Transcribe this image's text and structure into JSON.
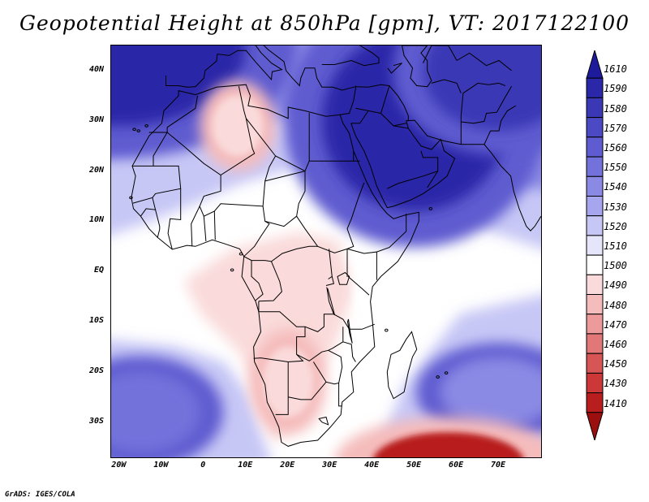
{
  "title": "Geopotential Height at 850hPa [gpm], VT: 2017122100",
  "credit": "GrADS: IGES/COLA",
  "map": {
    "lon_range": [
      -22,
      80
    ],
    "lat_range": [
      -37,
      45
    ],
    "lat_labels": [
      {
        "lat": 40,
        "label": "40N"
      },
      {
        "lat": 30,
        "label": "30N"
      },
      {
        "lat": 20,
        "label": "20N"
      },
      {
        "lat": 10,
        "label": "10N"
      },
      {
        "lat": 0,
        "label": "EQ"
      },
      {
        "lat": -10,
        "label": "10S"
      },
      {
        "lat": -20,
        "label": "20S"
      },
      {
        "lat": -30,
        "label": "30S"
      }
    ],
    "lon_labels": [
      {
        "lon": -20,
        "label": "20W"
      },
      {
        "lon": -10,
        "label": "10W"
      },
      {
        "lon": 0,
        "label": "0"
      },
      {
        "lon": 10,
        "label": "10E"
      },
      {
        "lon": 20,
        "label": "20E"
      },
      {
        "lon": 30,
        "label": "30E"
      },
      {
        "lon": 40,
        "label": "40E"
      },
      {
        "lon": 50,
        "label": "50E"
      },
      {
        "lon": 60,
        "label": "60E"
      },
      {
        "lon": 70,
        "label": "70E"
      }
    ]
  },
  "colorbar": {
    "labels": [
      "1610",
      "1590",
      "1580",
      "1570",
      "1560",
      "1550",
      "1540",
      "1530",
      "1520",
      "1510",
      "1500",
      "1490",
      "1480",
      "1470",
      "1460",
      "1450",
      "1430",
      "1410"
    ],
    "colors": [
      "#1e1a9c",
      "#2a27a8",
      "#3b38b6",
      "#4b49c3",
      "#5e5cd0",
      "#7372db",
      "#8a89e4",
      "#a6a6ee",
      "#c7c7f6",
      "#e6e6fb",
      "#ffffff",
      "#fadada",
      "#f5bcbc",
      "#ec9a9a",
      "#e27777",
      "#d85555",
      "#cc3737",
      "#b81e1e",
      "#9c0f0f"
    ]
  },
  "fields": {
    "highs": [
      {
        "name": "northwest-high",
        "lon": -20,
        "lat": 45,
        "rlon": 30,
        "rlat": 16,
        "level": 1590
      },
      {
        "name": "arabia-high",
        "lon": 50,
        "lat": 30,
        "rlon": 22,
        "rlat": 18,
        "level": 1590
      },
      {
        "name": "central-asia-high",
        "lon": 70,
        "lat": 40,
        "rlon": 18,
        "rlat": 12,
        "level": 1580
      },
      {
        "name": "south-atlantic-high",
        "lon": -15,
        "lat": -28,
        "rlon": 14,
        "rlat": 8,
        "level": 1550
      },
      {
        "name": "indian-ocean-high",
        "lon": 70,
        "lat": -24,
        "rlon": 14,
        "rlat": 7,
        "level": 1540
      }
    ],
    "lows": [
      {
        "name": "sahara-low",
        "lon": 8,
        "lat": 29,
        "rlon": 6,
        "rlat": 6,
        "level": 1490
      },
      {
        "name": "kalahari-low",
        "lon": 20,
        "lat": -22,
        "rlon": 6,
        "rlat": 7,
        "level": 1490
      },
      {
        "name": "south-indian-low",
        "lon": 58,
        "lat": -38,
        "rlon": 18,
        "rlat": 6,
        "level": 1410
      }
    ]
  }
}
